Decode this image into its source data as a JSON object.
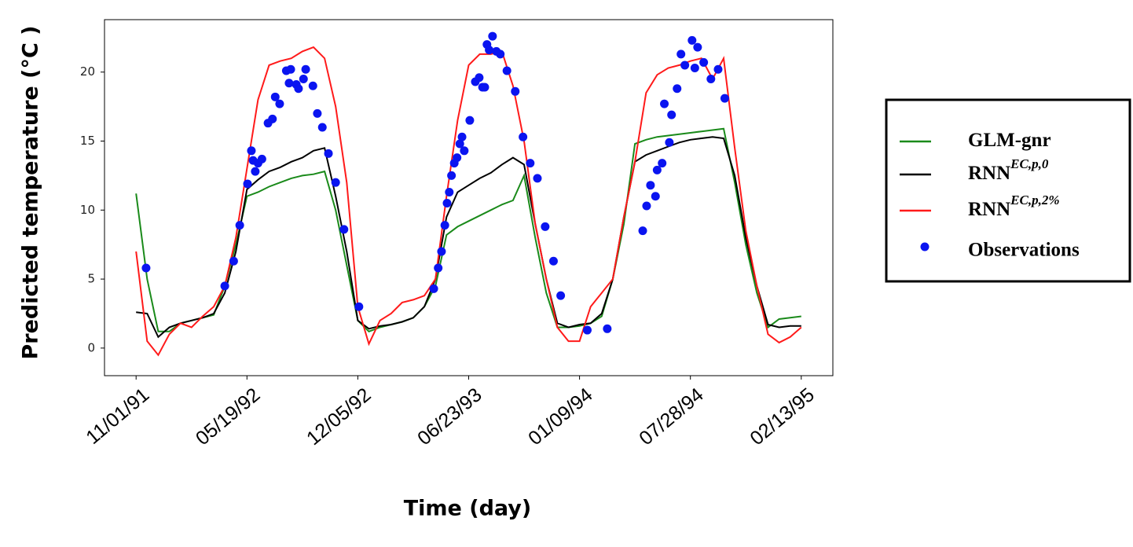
{
  "chart_data": {
    "type": "line",
    "x_label": "Time (day)",
    "y_label": "Predicted temperature (°C )",
    "xlim": [
      -57,
      1257
    ],
    "ylim": [
      -2,
      23.8
    ],
    "xticks": [
      {
        "value": 0,
        "label": "11/01/91"
      },
      {
        "value": 200,
        "label": "05/19/92"
      },
      {
        "value": 400,
        "label": "12/05/92"
      },
      {
        "value": 600,
        "label": "06/23/93"
      },
      {
        "value": 800,
        "label": "01/09/94"
      },
      {
        "value": 1000,
        "label": "07/28/94"
      },
      {
        "value": 1200,
        "label": "02/13/95"
      }
    ],
    "yticks": [
      0,
      5,
      10,
      15,
      20
    ],
    "x": [
      0,
      20,
      40,
      60,
      80,
      100,
      120,
      140,
      160,
      180,
      200,
      220,
      240,
      260,
      280,
      300,
      320,
      340,
      360,
      380,
      400,
      420,
      440,
      460,
      480,
      500,
      520,
      540,
      560,
      580,
      600,
      620,
      640,
      660,
      680,
      700,
      720,
      740,
      760,
      780,
      800,
      820,
      840,
      860,
      880,
      900,
      920,
      940,
      960,
      980,
      1000,
      1020,
      1040,
      1060,
      1080,
      1100,
      1120,
      1140,
      1160,
      1180,
      1200
    ],
    "series": [
      {
        "name": "GLM-gnr",
        "color": "#1a8a1a",
        "values": [
          11.2,
          5,
          1.2,
          1.2,
          1.8,
          2,
          2.2,
          2.4,
          4.5,
          7.5,
          11,
          11.3,
          11.7,
          12,
          12.3,
          12.5,
          12.6,
          12.8,
          10,
          6,
          2,
          1.2,
          1.5,
          1.7,
          1.9,
          2.2,
          3,
          4.5,
          8.2,
          8.8,
          9.2,
          9.6,
          10,
          10.4,
          10.7,
          12.5,
          8,
          4,
          1.5,
          1.5,
          1.6,
          1.8,
          2.3,
          5,
          9,
          14.8,
          15.1,
          15.3,
          15.4,
          15.5,
          15.6,
          15.7,
          15.8,
          15.9,
          12,
          7.5,
          4,
          1.5,
          2.1,
          2.2,
          2.3
        ]
      },
      {
        "name": "RNN",
        "superscript": "EC,p,0",
        "color": "#000000",
        "values": [
          2.6,
          2.5,
          0.8,
          1.5,
          1.8,
          2,
          2.2,
          2.5,
          4,
          7,
          11.5,
          12.2,
          12.8,
          13.1,
          13.5,
          13.8,
          14.3,
          14.5,
          11,
          7,
          2,
          1.4,
          1.6,
          1.7,
          1.9,
          2.2,
          3,
          5,
          9.5,
          11.3,
          11.8,
          12.3,
          12.7,
          13.3,
          13.8,
          13.3,
          9,
          5,
          1.8,
          1.5,
          1.7,
          1.8,
          2.5,
          5,
          9.5,
          13.5,
          14,
          14.3,
          14.6,
          14.9,
          15.1,
          15.2,
          15.3,
          15.2,
          12.5,
          8,
          4.5,
          1.7,
          1.5,
          1.6,
          1.6
        ]
      },
      {
        "name": "RNN",
        "superscript": "EC,p,2%",
        "color": "#ff1a1a",
        "values": [
          7,
          0.5,
          -0.5,
          1,
          1.8,
          1.5,
          2.3,
          3,
          4.5,
          8,
          13,
          18,
          20.5,
          20.8,
          21,
          21.5,
          21.8,
          21,
          17.5,
          12,
          3,
          0.3,
          2,
          2.5,
          3.3,
          3.5,
          3.8,
          5,
          11,
          16.5,
          20.5,
          21.3,
          21.3,
          21.5,
          19,
          15,
          9,
          5,
          1.5,
          0.5,
          0.5,
          3,
          4,
          5,
          9.5,
          13.5,
          18.5,
          19.8,
          20.3,
          20.5,
          20.8,
          21,
          19.5,
          21,
          14.5,
          8.5,
          4.5,
          1,
          0.4,
          0.8,
          1.5
        ]
      }
    ],
    "observations": {
      "name": "Observations",
      "color": "#0a14f0",
      "x": [
        18,
        160,
        176,
        187,
        201,
        208,
        211,
        215,
        220,
        227,
        238,
        246,
        251,
        259,
        271,
        279,
        276,
        289,
        293,
        302,
        306,
        319,
        327,
        336,
        347,
        360,
        375,
        402,
        537,
        545,
        551,
        557,
        561,
        565,
        569,
        574,
        579,
        584,
        588,
        592,
        602,
        612,
        619,
        625,
        629,
        633,
        637,
        643,
        650,
        657,
        669,
        684,
        698,
        711,
        724,
        738,
        753,
        766,
        814,
        850,
        914,
        921,
        928,
        937,
        940,
        949,
        953,
        962,
        966,
        976,
        983,
        990,
        1003,
        1008,
        1013,
        1024,
        1037,
        1050,
        1062
      ],
      "values": [
        5.8,
        4.5,
        6.3,
        8.9,
        11.9,
        14.3,
        13.6,
        12.8,
        13.4,
        13.7,
        16.3,
        16.6,
        18.2,
        17.7,
        20.1,
        20.2,
        19.2,
        19.1,
        18.8,
        19.5,
        20.2,
        19,
        17,
        16,
        14.1,
        12,
        8.6,
        3,
        4.3,
        5.8,
        7,
        8.9,
        10.5,
        11.3,
        12.5,
        13.4,
        13.8,
        14.8,
        15.3,
        14.3,
        16.5,
        19.3,
        19.6,
        18.9,
        18.9,
        22,
        21.6,
        22.6,
        21.5,
        21.3,
        20.1,
        18.6,
        15.3,
        13.4,
        12.3,
        8.8,
        6.3,
        3.8,
        1.3,
        1.4,
        8.5,
        10.3,
        11.8,
        11,
        12.9,
        13.4,
        17.7,
        14.9,
        16.9,
        18.8,
        21.3,
        20.5,
        22.3,
        20.3,
        21.8,
        20.7,
        19.5,
        20.2,
        18.1
      ]
    }
  }
}
